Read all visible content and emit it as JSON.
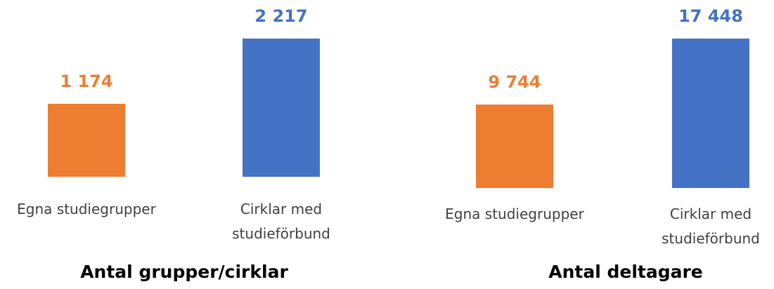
{
  "chart_data": [
    {
      "type": "bar",
      "title": "Antal grupper/cirklar",
      "categories": [
        "Egna studiegrupper",
        "Cirklar med studieförbund"
      ],
      "values": [
        1174,
        2217
      ],
      "value_labels": [
        "1 174",
        "2 217"
      ],
      "colors": [
        "#ed7d31",
        "#4472c4"
      ]
    },
    {
      "type": "bar",
      "title": "Antal deltagare",
      "categories": [
        "Egna studiegrupper",
        "Cirklar med studieförbund"
      ],
      "values": [
        9744,
        17448
      ],
      "value_labels": [
        "9 744",
        "17 448"
      ],
      "colors": [
        "#ed7d31",
        "#4472c4"
      ]
    }
  ]
}
